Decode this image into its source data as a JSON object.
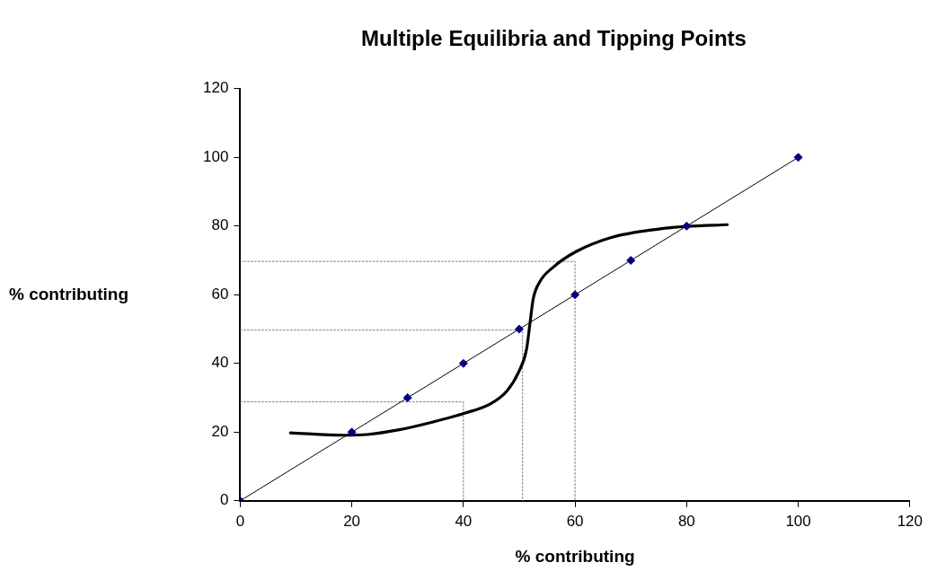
{
  "chart_data": {
    "type": "line",
    "title": "Multiple Equilibria and Tipping Points",
    "xlabel": "% contributing",
    "ylabel": "% contributing",
    "xlim": [
      0,
      120
    ],
    "xticks": [
      0,
      20,
      40,
      60,
      80,
      100,
      120
    ],
    "ylim": [
      0,
      120
    ],
    "yticks": [
      0,
      20,
      40,
      60,
      80,
      100,
      120
    ],
    "grid": false,
    "legend": false,
    "series": [
      {
        "color": "#000000",
        "marker": "diamond",
        "line_style": "solid",
        "x": [
          0,
          20,
          30,
          40,
          50,
          60,
          70,
          80,
          100
        ],
        "values": [
          0,
          20,
          30,
          40,
          50,
          60,
          70,
          80,
          100
        ]
      },
      {
        "color": "#000000",
        "marker": "none",
        "line_style": "solid",
        "x": [
          9,
          18.6,
          22.7,
          28.5,
          34.4,
          40.2,
          44.9,
          47.8,
          49.9,
          51.3,
          51.9,
          52.5,
          53.7,
          56,
          60.1,
          66.5,
          75.3,
          80,
          87.3
        ],
        "values": [
          19.8,
          19.1,
          19.3,
          20.7,
          22.9,
          25.5,
          28.3,
          32,
          37.5,
          44,
          51.3,
          58.7,
          63.8,
          67.9,
          72.5,
          76.7,
          79.2,
          79.9,
          80.4
        ]
      },
      {
        "color": "#808080",
        "marker": "none",
        "line_style": "dotted",
        "x": [
          0,
          40,
          40
        ],
        "values": [
          28.8,
          28.8,
          0
        ]
      },
      {
        "color": "#808080",
        "marker": "none",
        "line_style": "dotted",
        "x": [
          0,
          50.6,
          50.6
        ],
        "values": [
          49.7,
          49.7,
          0
        ]
      },
      {
        "color": "#808080",
        "marker": "none",
        "line_style": "dotted",
        "x": [
          0,
          60,
          60
        ],
        "values": [
          69.7,
          69.7,
          0
        ]
      }
    ]
  }
}
